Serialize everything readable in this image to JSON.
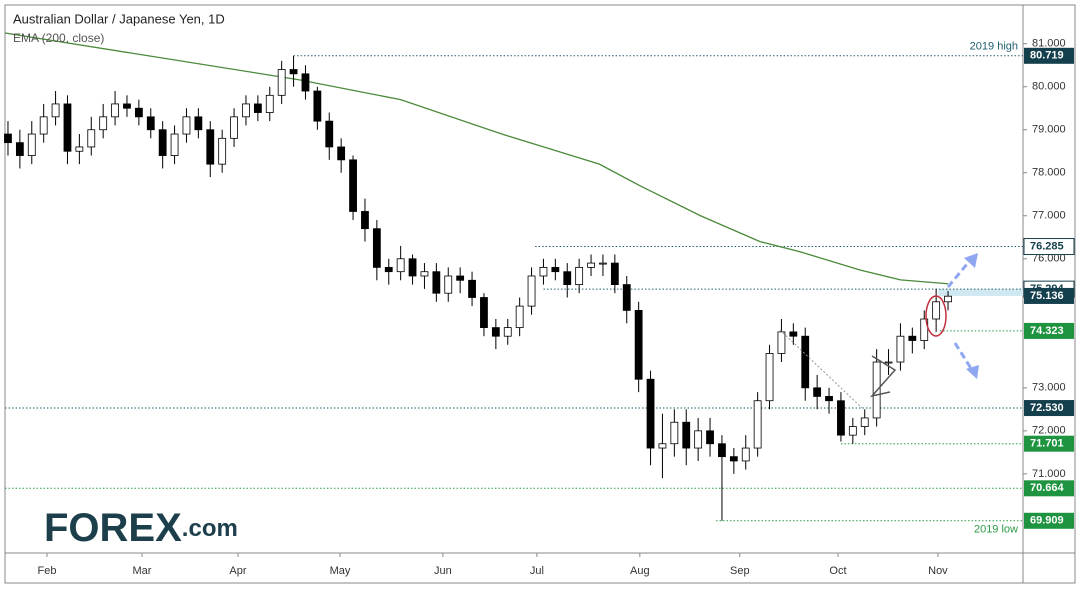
{
  "chart_data": {
    "type": "candlestick",
    "title": "Australian Dollar / Japanese Yen, 1D",
    "subtitle": "EMA (200, close)",
    "brand": "FOREX",
    "brand_suffix": ".com",
    "xlim": [
      -0.25,
      85.3
    ],
    "xticks": [
      {
        "value": 3.28,
        "label": "Feb"
      },
      {
        "value": 11.26,
        "label": "Mar"
      },
      {
        "value": 19.33,
        "label": "Apr"
      },
      {
        "value": 27.9,
        "label": "May"
      },
      {
        "value": 36.55,
        "label": "Jun"
      },
      {
        "value": 44.45,
        "label": "Jul"
      },
      {
        "value": 53.1,
        "label": "Aug"
      },
      {
        "value": 61.5,
        "label": "Sep"
      },
      {
        "value": 69.75,
        "label": "Oct"
      },
      {
        "value": 78.15,
        "label": "Nov"
      }
    ],
    "ylim": [
      69.16,
      81.9
    ],
    "yticks": [
      {
        "value": 71,
        "label": "71.000"
      },
      {
        "value": 72,
        "label": "72.000"
      },
      {
        "value": 73,
        "label": "73.000"
      },
      {
        "value": 76,
        "label": "76.000"
      },
      {
        "value": 77,
        "label": "77.000"
      },
      {
        "value": 78,
        "label": "78.000"
      },
      {
        "value": 79,
        "label": "79.000"
      },
      {
        "value": 80,
        "label": "80.000"
      },
      {
        "value": 81,
        "label": "81.000"
      }
    ],
    "last_price": 75.128,
    "up_color": "#ffffff",
    "down_color": "#000000",
    "open": [
      78.9,
      78.7,
      78.4,
      78.9,
      79.3,
      79.6,
      78.5,
      78.6,
      79.0,
      79.3,
      79.6,
      79.5,
      79.3,
      79.0,
      78.4,
      78.9,
      79.3,
      79.0,
      78.2,
      78.8,
      79.3,
      79.6,
      79.4,
      79.8,
      80.4,
      80.3,
      79.9,
      79.2,
      78.6,
      78.3,
      77.1,
      76.7,
      75.8,
      75.7,
      76.0,
      75.6,
      75.7,
      75.2,
      75.6,
      75.5,
      75.1,
      74.4,
      74.2,
      74.4,
      74.9,
      75.6,
      75.8,
      75.7,
      75.4,
      75.8,
      75.9,
      75.9,
      75.4,
      74.8,
      73.2,
      71.6,
      71.7,
      72.2,
      71.6,
      72.0,
      71.7,
      71.4,
      71.3,
      71.6,
      72.7,
      73.8,
      74.3,
      74.2,
      73.0,
      72.8,
      72.7,
      71.9,
      72.1,
      72.3,
      73.6,
      73.6,
      74.2,
      74.1,
      74.6,
      75.0
    ],
    "high": [
      79.2,
      79.0,
      79.2,
      79.6,
      79.9,
      79.8,
      78.9,
      79.3,
      79.6,
      79.9,
      79.8,
      79.7,
      79.5,
      79.2,
      79.1,
      79.5,
      79.5,
      79.2,
      79.0,
      79.5,
      79.8,
      79.8,
      80.0,
      80.6,
      80.719,
      80.5,
      80.0,
      79.4,
      78.8,
      78.4,
      77.4,
      76.9,
      76.0,
      76.3,
      76.1,
      75.9,
      75.9,
      75.8,
      75.8,
      75.7,
      75.2,
      74.6,
      74.6,
      75.1,
      75.8,
      76.0,
      76.0,
      75.9,
      76.0,
      76.1,
      76.1,
      76.1,
      75.6,
      75.0,
      73.4,
      72.4,
      72.5,
      72.5,
      72.3,
      72.3,
      71.9,
      71.6,
      71.9,
      72.9,
      74.0,
      74.6,
      74.5,
      74.4,
      73.3,
      73.0,
      72.9,
      72.3,
      72.5,
      73.9,
      73.9,
      74.5,
      74.4,
      74.8,
      75.3,
      75.25
    ],
    "low": [
      78.4,
      78.1,
      78.2,
      78.7,
      79.1,
      78.2,
      78.2,
      78.4,
      78.8,
      79.1,
      79.3,
      79.1,
      78.8,
      78.1,
      78.2,
      78.7,
      78.8,
      77.9,
      78.0,
      78.6,
      79.1,
      79.2,
      79.2,
      79.6,
      80.0,
      79.7,
      79.0,
      78.3,
      78.0,
      76.9,
      76.4,
      75.5,
      75.4,
      75.5,
      75.4,
      75.3,
      75.0,
      75.0,
      75.2,
      74.9,
      74.2,
      73.9,
      74.0,
      74.2,
      74.7,
      75.4,
      75.5,
      75.1,
      75.2,
      75.6,
      75.6,
      75.2,
      74.5,
      72.9,
      71.2,
      70.9,
      71.4,
      71.2,
      71.3,
      71.4,
      69.909,
      71.0,
      71.1,
      71.4,
      72.5,
      73.6,
      74.0,
      72.7,
      72.5,
      72.4,
      71.75,
      71.7,
      71.9,
      72.1,
      73.3,
      73.4,
      73.8,
      73.9,
      74.3,
      74.8
    ],
    "close": [
      78.7,
      78.4,
      78.9,
      79.3,
      79.6,
      78.5,
      78.6,
      79.0,
      79.3,
      79.6,
      79.5,
      79.3,
      79.0,
      78.4,
      78.9,
      79.3,
      79.0,
      78.2,
      78.8,
      79.3,
      79.6,
      79.4,
      79.8,
      80.4,
      80.3,
      79.9,
      79.2,
      78.6,
      78.3,
      77.1,
      76.7,
      75.8,
      75.7,
      76.0,
      75.6,
      75.7,
      75.2,
      75.6,
      75.5,
      75.1,
      74.4,
      74.2,
      74.4,
      74.9,
      75.6,
      75.8,
      75.7,
      75.4,
      75.8,
      75.9,
      75.9,
      75.4,
      74.8,
      73.2,
      71.6,
      71.7,
      72.2,
      71.6,
      72.0,
      71.7,
      71.4,
      71.3,
      71.6,
      72.7,
      73.8,
      74.3,
      74.2,
      73.0,
      72.8,
      72.7,
      71.9,
      72.1,
      72.3,
      73.6,
      73.6,
      74.2,
      74.1,
      74.6,
      75.0,
      75.13
    ],
    "ema": {
      "name": "EMA (200, close)",
      "color": "#4a8a3a",
      "x": [
        -0.25,
        24.5,
        33,
        41.5,
        49.7,
        53.1,
        58.2,
        63.2,
        66.6,
        71.6,
        75,
        79
      ],
      "values": [
        81.25,
        80.16,
        79.7,
        78.9,
        78.2,
        77.7,
        77.0,
        76.4,
        76.16,
        75.74,
        75.51,
        75.42
      ]
    },
    "levels": [
      {
        "value": 80.719,
        "style": "dark"
      },
      {
        "value": 76.285,
        "style": "box"
      },
      {
        "value": 75.294,
        "style": "box"
      },
      {
        "value": 75.136,
        "style": "dark"
      },
      {
        "value": 74.323,
        "style": "green"
      },
      {
        "value": 72.53,
        "label": "72.530",
        "style": "dark"
      },
      {
        "value": 71.701,
        "style": "green"
      },
      {
        "value": 70.664,
        "style": "green"
      },
      {
        "value": 69.909,
        "style": "green"
      }
    ],
    "annotations": [
      {
        "text": "2019 high",
        "level": 0
      },
      {
        "text": "2019 low",
        "level": 8
      }
    ]
  }
}
